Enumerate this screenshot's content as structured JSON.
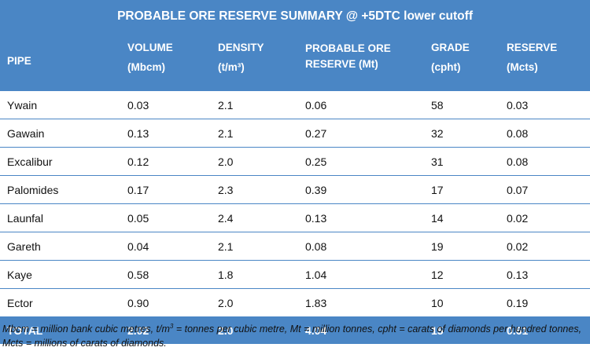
{
  "title": "PROBABLE ORE RESERVE SUMMARY @ +5DTC lower cutoff",
  "headers": {
    "pipe": "PIPE",
    "volume": "VOLUME",
    "volume_unit": "(Mbcm)",
    "density": "DENSITY",
    "density_unit": "(t/m³)",
    "reserve_mt_1": "PROBABLE ORE",
    "reserve_mt_2": "RESERVE (Mt)",
    "grade": "GRADE",
    "grade_unit": "(cpht)",
    "reserve": "RESERVE",
    "reserve_unit": "(Mcts)"
  },
  "rows": [
    {
      "pipe": "Ywain",
      "volume": "0.03",
      "density": "2.1",
      "ore": "0.06",
      "grade": "58",
      "reserve": "0.03"
    },
    {
      "pipe": "Gawain",
      "volume": "0.13",
      "density": "2.1",
      "ore": "0.27",
      "grade": "32",
      "reserve": "0.08"
    },
    {
      "pipe": "Excalibur",
      "volume": "0.12",
      "density": "2.0",
      "ore": "0.25",
      "grade": "31",
      "reserve": "0.08"
    },
    {
      "pipe": "Palomides",
      "volume": "0.17",
      "density": "2.3",
      "ore": "0.39",
      "grade": "17",
      "reserve": "0.07"
    },
    {
      "pipe": "Launfal",
      "volume": "0.05",
      "density": "2.4",
      "ore": "0.13",
      "grade": "14",
      "reserve": "0.02"
    },
    {
      "pipe": "Gareth",
      "volume": "0.04",
      "density": "2.1",
      "ore": "0.08",
      "grade": "19",
      "reserve": "0.02"
    },
    {
      "pipe": "Kaye",
      "volume": "0.58",
      "density": "1.8",
      "ore": "1.04",
      "grade": "12",
      "reserve": "0.13"
    },
    {
      "pipe": "Ector",
      "volume": "0.90",
      "density": "2.0",
      "ore": "1.83",
      "grade": "10",
      "reserve": "0.19"
    }
  ],
  "total": {
    "pipe": "TOTAL",
    "volume": "2.02",
    "density": "2.0",
    "ore": "4.04",
    "grade": "15",
    "reserve": "0.61"
  },
  "footnote": {
    "part1": "Mbcm = million bank cubic metres, t/m",
    "sup": "3",
    "part2": " = tonnes per cubic metre, Mt = million tonnes, cpht = carats of diamonds per hundred tonnes, Mcts = millions of carats of diamonds."
  },
  "colors": {
    "header_bg": "#4a86c5",
    "rule": "#4a86c5"
  }
}
